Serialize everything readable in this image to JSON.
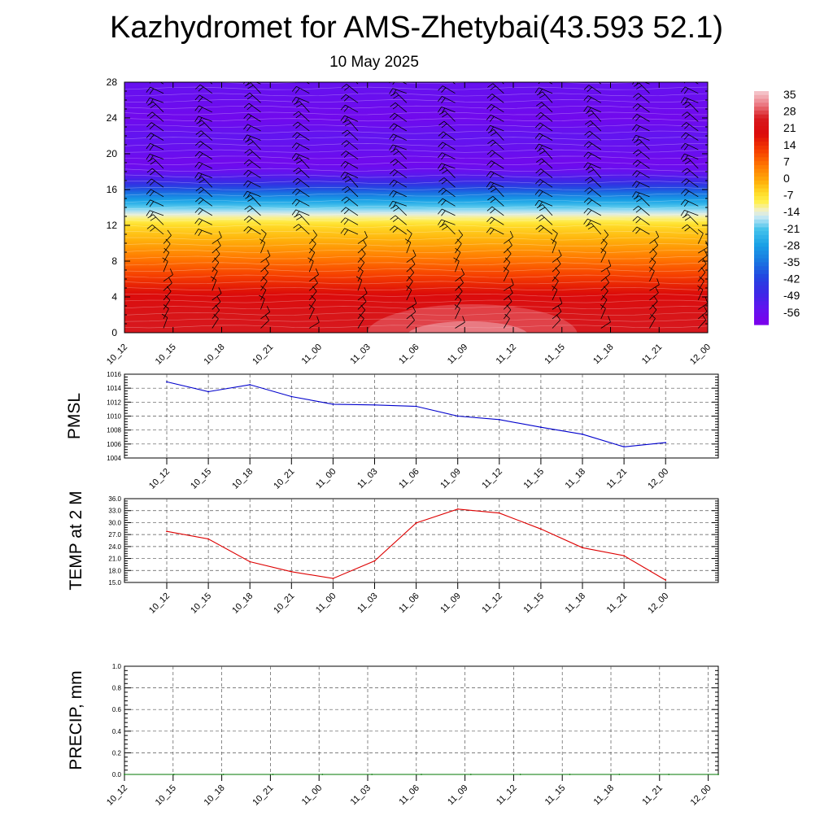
{
  "title": "Kazhydromet for AMS-Zhetybai(43.593 52.1)",
  "subtitle": "10 May 2025",
  "time_labels": [
    "10_12",
    "10_15",
    "10_18",
    "10_21",
    "11_00",
    "11_03",
    "11_06",
    "11_09",
    "11_12",
    "11_15",
    "11_18",
    "11_21",
    "12_00"
  ],
  "chart_data": [
    {
      "type": "heatmap",
      "name": "cross-section",
      "x": [
        "10_12",
        "10_15",
        "10_18",
        "10_21",
        "11_00",
        "11_03",
        "11_06",
        "11_09",
        "11_12",
        "11_15",
        "11_18",
        "11_21",
        "12_00"
      ],
      "y_ticks": [
        0,
        4,
        8,
        12,
        16,
        20,
        24,
        28
      ],
      "ylim": [
        0,
        28
      ],
      "profile_height": [
        0,
        2,
        4,
        6,
        8,
        10,
        12,
        13,
        14,
        15,
        16,
        17,
        18,
        19,
        20,
        22,
        24,
        26,
        28
      ],
      "profile_temp": [
        28,
        26,
        22,
        15,
        8,
        1,
        -5,
        -12,
        -20,
        -30,
        -40,
        -50,
        -57,
        -60,
        -58,
        -56,
        -60,
        -58,
        -57
      ],
      "colorbar": {
        "labels": [
          "35",
          "28",
          "21",
          "14",
          "7",
          "0",
          "-7",
          "-14",
          "-21",
          "-28",
          "-35",
          "-42",
          "-49",
          "-56"
        ],
        "range": [
          -63,
          40
        ]
      },
      "wind_barbs": true
    },
    {
      "type": "line",
      "name": "pmsl",
      "ylabel": "PMSL",
      "x": [
        "10_12",
        "10_15",
        "10_18",
        "10_21",
        "11_00",
        "11_03",
        "11_06",
        "11_09",
        "11_12",
        "11_15",
        "11_18",
        "11_21",
        "12_00"
      ],
      "values": [
        1014.9,
        1013.5,
        1014.5,
        1012.8,
        1011.7,
        1011.6,
        1011.4,
        1010.0,
        1009.5,
        1008.4,
        1007.4,
        1005.6,
        1006.2
      ],
      "yticks": [
        "1004",
        "1006",
        "1008",
        "1010",
        "1012",
        "1014",
        "1016"
      ],
      "ylim": [
        1004,
        1016
      ],
      "color": "#0000cc"
    },
    {
      "type": "line",
      "name": "temp2m",
      "ylabel": "TEMP at 2 M",
      "x": [
        "10_12",
        "10_15",
        "10_18",
        "10_21",
        "11_00",
        "11_03",
        "11_06",
        "11_09",
        "11_12",
        "11_15",
        "11_18",
        "11_21",
        "12_00"
      ],
      "values": [
        27.8,
        25.9,
        20.2,
        17.7,
        16.0,
        20.4,
        29.9,
        33.4,
        32.4,
        28.4,
        23.7,
        21.7,
        15.6
      ],
      "yticks": [
        "15.0",
        "18.0",
        "21.0",
        "24.0",
        "27.0",
        "30.0",
        "33.0",
        "36.0"
      ],
      "ylim": [
        15,
        36
      ],
      "color": "#dd0000"
    },
    {
      "type": "line",
      "name": "precip",
      "ylabel": "PRECIP, mm",
      "x": [
        "10_12",
        "10_15",
        "10_18",
        "10_21",
        "11_00",
        "11_03",
        "11_06",
        "11_09",
        "11_12",
        "11_15",
        "11_18",
        "11_21",
        "12_00"
      ],
      "values": [
        0,
        0,
        0,
        0,
        0,
        0,
        0,
        0,
        0,
        0,
        0,
        0,
        0
      ],
      "yticks": [
        "0.0",
        "0.2",
        "0.4",
        "0.6",
        "0.8",
        "1.0"
      ],
      "ylim": [
        0,
        1
      ],
      "color": "#007700"
    }
  ]
}
